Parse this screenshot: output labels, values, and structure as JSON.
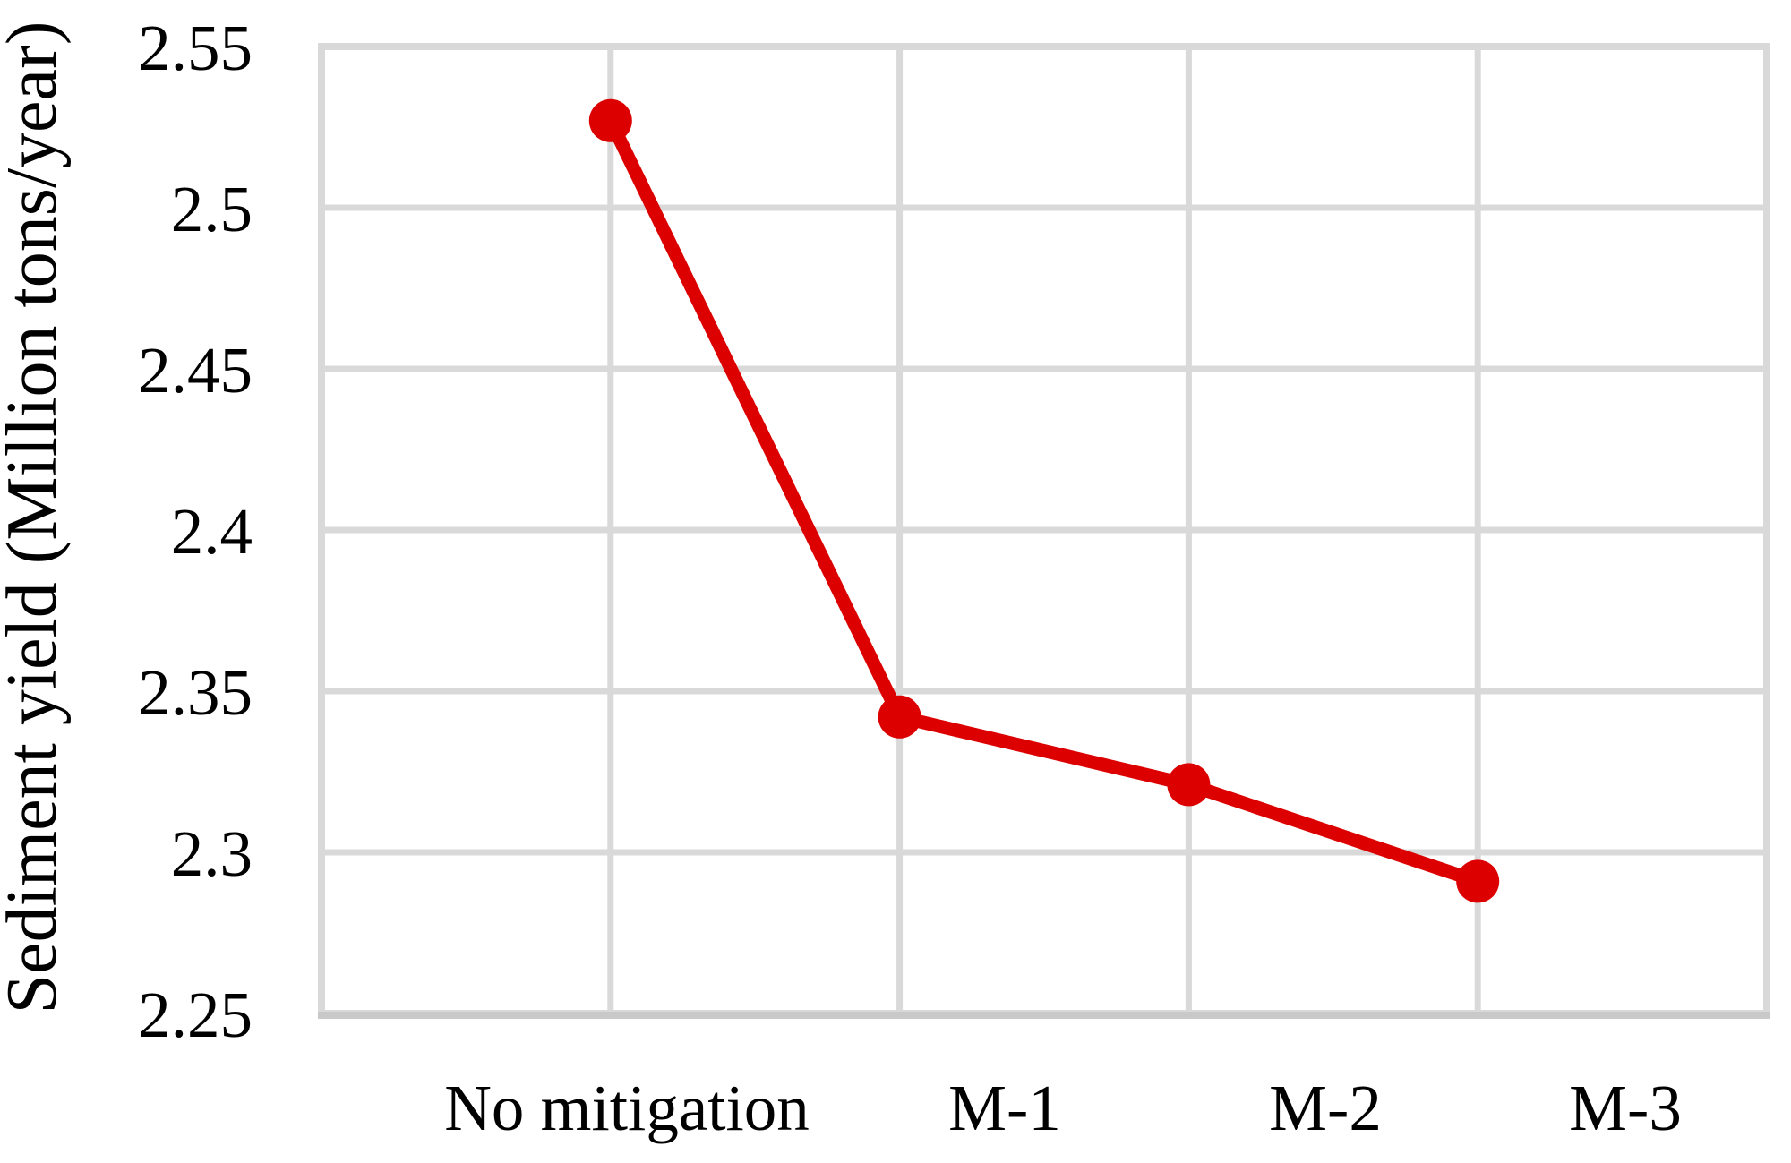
{
  "chart_data": {
    "type": "line",
    "categories": [
      "No mitigation",
      "M-1",
      "M-2",
      "M-3"
    ],
    "values": [
      2.527,
      2.342,
      2.321,
      2.291
    ],
    "series": [
      {
        "name": "Sediment yield",
        "values": [
          2.527,
          2.342,
          2.321,
          2.291
        ]
      }
    ],
    "title": "",
    "xlabel": "",
    "ylabel": "Sediment yield (Million tons/year)",
    "ylim": [
      2.25,
      2.55
    ],
    "ytick_step": 0.05,
    "ytick_labels": [
      "2.55",
      "2.5",
      "2.45",
      "2.4",
      "2.35",
      "2.3",
      "2.25"
    ],
    "grid": true,
    "legend_position": "none",
    "colors": {
      "series": "#dc0000",
      "gridline": "#d9d9d9",
      "axis_line": "#c9c9c9",
      "text": "#000000",
      "background": "#ffffff"
    }
  }
}
